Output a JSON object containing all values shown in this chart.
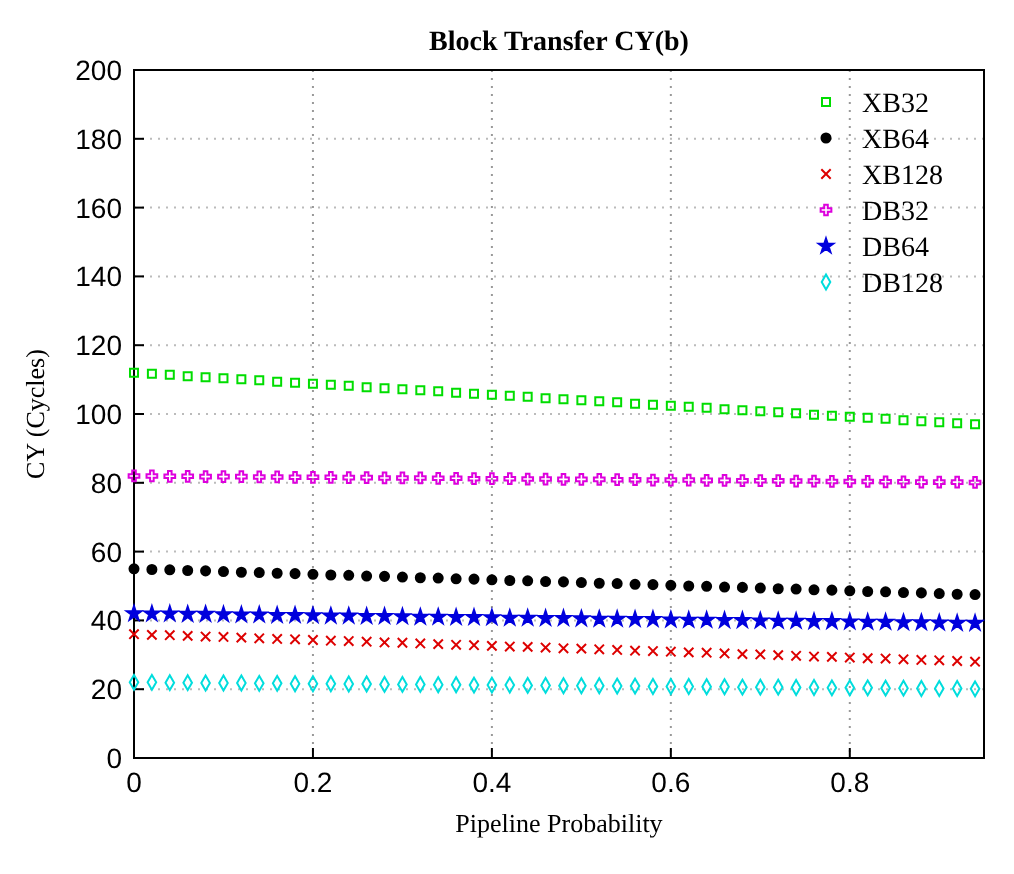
{
  "chart_data": {
    "type": "scatter",
    "title": "Block Transfer CY(b)",
    "xlabel": "Pipeline Probability",
    "ylabel": "CY (Cycles)",
    "x": [
      0,
      0.02,
      0.04,
      0.06,
      0.08,
      0.1,
      0.12,
      0.14,
      0.16,
      0.18,
      0.2,
      0.22,
      0.24,
      0.26,
      0.28,
      0.3,
      0.32,
      0.34,
      0.36,
      0.38,
      0.4,
      0.42,
      0.44,
      0.46,
      0.48,
      0.5,
      0.52,
      0.54,
      0.56,
      0.58,
      0.6,
      0.62,
      0.64,
      0.66,
      0.68,
      0.7,
      0.72,
      0.74,
      0.76,
      0.78,
      0.8,
      0.82,
      0.84,
      0.86,
      0.88,
      0.9,
      0.92,
      0.94
    ],
    "series": [
      {
        "name": "XB32",
        "color": "#00dd00",
        "marker": "square",
        "values": [
          112,
          111.7,
          111.4,
          111,
          110.7,
          110.4,
          110.1,
          109.8,
          109.4,
          109.1,
          108.8,
          108.5,
          108.2,
          107.8,
          107.5,
          107.2,
          106.9,
          106.6,
          106.2,
          105.9,
          105.6,
          105.3,
          105,
          104.6,
          104.3,
          104,
          103.7,
          103.4,
          103,
          102.7,
          102.4,
          102.1,
          101.8,
          101.4,
          101.1,
          100.8,
          100.5,
          100.2,
          99.8,
          99.5,
          99.2,
          98.9,
          98.6,
          98.2,
          97.9,
          97.6,
          97.3,
          97
        ]
      },
      {
        "name": "XB64",
        "color": "#000000",
        "marker": "circle",
        "values": [
          55,
          54.8,
          54.7,
          54.5,
          54.4,
          54.2,
          54,
          53.9,
          53.7,
          53.6,
          53.4,
          53.2,
          53.1,
          52.9,
          52.8,
          52.6,
          52.4,
          52.3,
          52.1,
          52,
          51.8,
          51.6,
          51.5,
          51.3,
          51.2,
          51,
          50.8,
          50.7,
          50.5,
          50.4,
          50.2,
          50,
          49.9,
          49.7,
          49.6,
          49.4,
          49.2,
          49.1,
          48.9,
          48.8,
          48.6,
          48.4,
          48.3,
          48.1,
          48,
          47.8,
          47.6,
          47.5
        ]
      },
      {
        "name": "XB128",
        "color": "#dd0000",
        "marker": "cross",
        "values": [
          36,
          35.8,
          35.7,
          35.5,
          35.3,
          35.2,
          35,
          34.8,
          34.6,
          34.5,
          34.3,
          34.1,
          34,
          33.8,
          33.6,
          33.5,
          33.3,
          33.1,
          32.9,
          32.8,
          32.6,
          32.4,
          32.3,
          32.1,
          31.9,
          31.8,
          31.6,
          31.4,
          31.2,
          31.1,
          30.9,
          30.7,
          30.6,
          30.4,
          30.2,
          30.1,
          29.9,
          29.7,
          29.5,
          29.4,
          29.2,
          29,
          28.9,
          28.7,
          28.5,
          28.4,
          28.2,
          28
        ]
      },
      {
        "name": "DB32",
        "color": "#dd00dd",
        "marker": "plus",
        "values": [
          82,
          82,
          81.9,
          81.9,
          81.8,
          81.8,
          81.8,
          81.7,
          81.7,
          81.6,
          81.6,
          81.6,
          81.5,
          81.5,
          81.4,
          81.4,
          81.4,
          81.3,
          81.3,
          81.2,
          81.2,
          81.2,
          81.1,
          81.1,
          81,
          81,
          81,
          80.9,
          80.9,
          80.8,
          80.8,
          80.8,
          80.7,
          80.7,
          80.6,
          80.6,
          80.6,
          80.5,
          80.5,
          80.4,
          80.4,
          80.4,
          80.3,
          80.3,
          80.2,
          80.2,
          80.2,
          80.1
        ]
      },
      {
        "name": "DB64",
        "color": "#0000dd",
        "marker": "star",
        "values": [
          42,
          41.9,
          41.9,
          41.8,
          41.8,
          41.7,
          41.6,
          41.6,
          41.5,
          41.5,
          41.4,
          41.3,
          41.3,
          41.2,
          41.2,
          41.1,
          41,
          41,
          40.9,
          40.9,
          40.8,
          40.7,
          40.7,
          40.6,
          40.6,
          40.5,
          40.4,
          40.4,
          40.3,
          40.3,
          40.2,
          40.1,
          40.1,
          40,
          40,
          39.9,
          39.8,
          39.8,
          39.7,
          39.7,
          39.6,
          39.5,
          39.5,
          39.4,
          39.4,
          39.3,
          39.2,
          39.2
        ]
      },
      {
        "name": "DB128",
        "color": "#00dddd",
        "marker": "diamond",
        "values": [
          22,
          22,
          21.9,
          21.9,
          21.8,
          21.8,
          21.8,
          21.7,
          21.7,
          21.6,
          21.6,
          21.6,
          21.5,
          21.5,
          21.4,
          21.4,
          21.4,
          21.3,
          21.3,
          21.2,
          21.2,
          21.2,
          21.1,
          21.1,
          21,
          21,
          21,
          20.9,
          20.9,
          20.8,
          20.8,
          20.8,
          20.7,
          20.7,
          20.6,
          20.6,
          20.6,
          20.5,
          20.5,
          20.4,
          20.4,
          20.4,
          20.3,
          20.3,
          20.2,
          20.2,
          20.2,
          20.1
        ]
      }
    ],
    "xlim": [
      0,
      0.95
    ],
    "xticks": [
      0,
      0.2,
      0.4,
      0.6,
      0.8
    ],
    "ylim": [
      0,
      200
    ],
    "yticks": [
      0,
      20,
      40,
      60,
      80,
      100,
      120,
      140,
      160,
      180,
      200
    ],
    "grid": true,
    "legend": "top right"
  }
}
